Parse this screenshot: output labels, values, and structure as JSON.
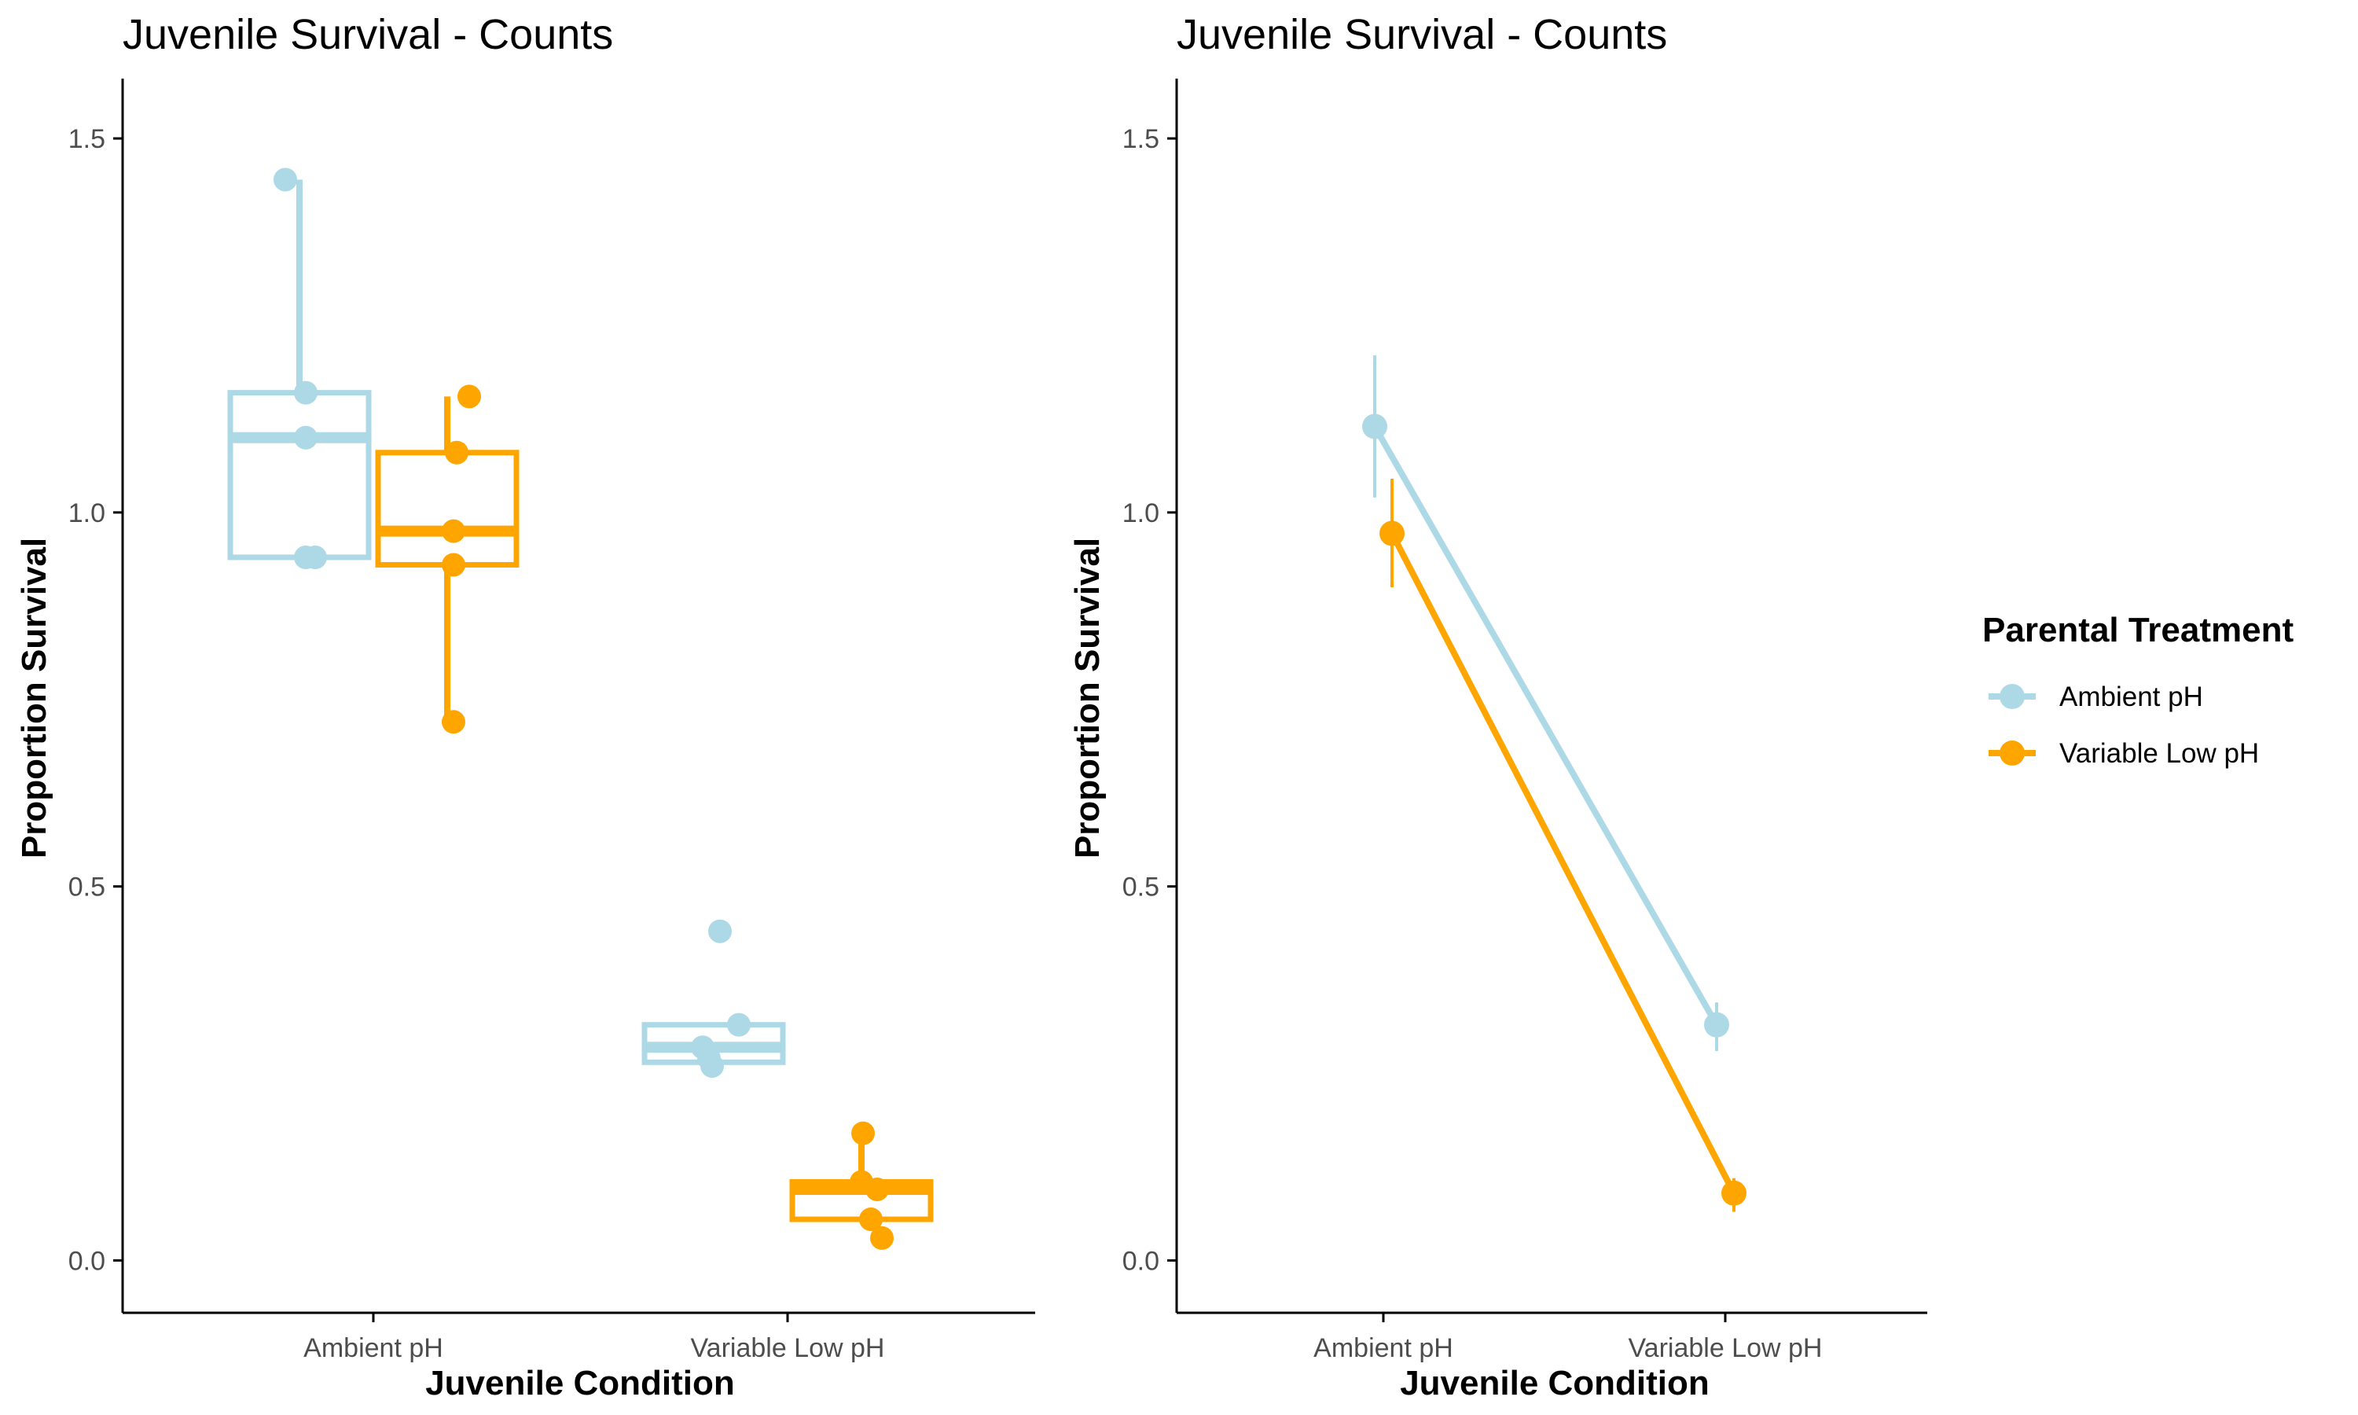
{
  "colors": {
    "ambient": "#ADD8E6",
    "variable": "#FFA500",
    "axis": "#000000",
    "tick_text": "#4d4d4d"
  },
  "legend": {
    "title": "Parental Treatment",
    "items": [
      {
        "label": "Ambient pH",
        "color": "#ADD8E6"
      },
      {
        "label": "Variable Low pH",
        "color": "#FFA500"
      }
    ]
  },
  "chart_data": [
    {
      "type": "box",
      "title": "Juvenile Survival - Counts",
      "xlabel": "Juvenile Condition",
      "ylabel": "Proportion Survival",
      "categories": [
        "Ambient pH",
        "Variable Low pH"
      ],
      "ylim": [
        -0.07,
        1.58
      ],
      "yticks": [
        0.0,
        0.5,
        1.0,
        1.5
      ],
      "ytick_labels": [
        "0.0",
        "0.5",
        "1.0",
        "1.5"
      ],
      "grid": false,
      "legend_position": "right",
      "series": [
        {
          "name": "Ambient pH",
          "color": "#ADD8E6",
          "boxes": [
            {
              "category": "Ambient pH",
              "min": 0.94,
              "q1": 0.94,
              "median": 1.1,
              "q3": 1.16,
              "max": 1.445
            },
            {
              "category": "Variable Low pH",
              "min": 0.265,
              "q1": 0.265,
              "median": 0.285,
              "q3": 0.315,
              "max": 0.315
            }
          ],
          "points": [
            {
              "category": "Ambient pH",
              "values": [
                1.445,
                1.16,
                1.1,
                0.94,
                0.94
              ]
            },
            {
              "category": "Variable Low pH",
              "values": [
                0.44,
                0.315,
                0.285,
                0.27,
                0.26
              ]
            }
          ]
        },
        {
          "name": "Variable Low pH",
          "color": "#FFA500",
          "boxes": [
            {
              "category": "Ambient pH",
              "min": 0.72,
              "q1": 0.93,
              "median": 0.975,
              "q3": 1.08,
              "max": 1.155
            },
            {
              "category": "Variable Low pH",
              "min": 0.055,
              "q1": 0.055,
              "median": 0.095,
              "q3": 0.105,
              "max": 0.17
            }
          ],
          "points": [
            {
              "category": "Ambient pH",
              "values": [
                1.155,
                1.08,
                0.975,
                0.93,
                0.72
              ]
            },
            {
              "category": "Variable Low pH",
              "values": [
                0.17,
                0.105,
                0.095,
                0.055,
                0.03
              ]
            }
          ]
        }
      ]
    },
    {
      "type": "line",
      "title": "Juvenile Survival - Counts",
      "xlabel": "Juvenile Condition",
      "ylabel": "Proportion Survival",
      "categories": [
        "Ambient pH",
        "Variable Low pH"
      ],
      "ylim": [
        -0.07,
        1.58
      ],
      "yticks": [
        0.0,
        0.5,
        1.0,
        1.5
      ],
      "ytick_labels": [
        "0.0",
        "0.5",
        "1.0",
        "1.5"
      ],
      "grid": false,
      "legend_position": "right",
      "series": [
        {
          "name": "Ambient pH",
          "color": "#ADD8E6",
          "values": [
            1.115,
            0.315
          ],
          "err_low": [
            1.02,
            0.28
          ],
          "err_high": [
            1.21,
            0.345
          ]
        },
        {
          "name": "Variable Low pH",
          "color": "#FFA500",
          "values": [
            0.972,
            0.09
          ],
          "err_low": [
            0.9,
            0.065
          ],
          "err_high": [
            1.045,
            0.11
          ]
        }
      ]
    }
  ]
}
